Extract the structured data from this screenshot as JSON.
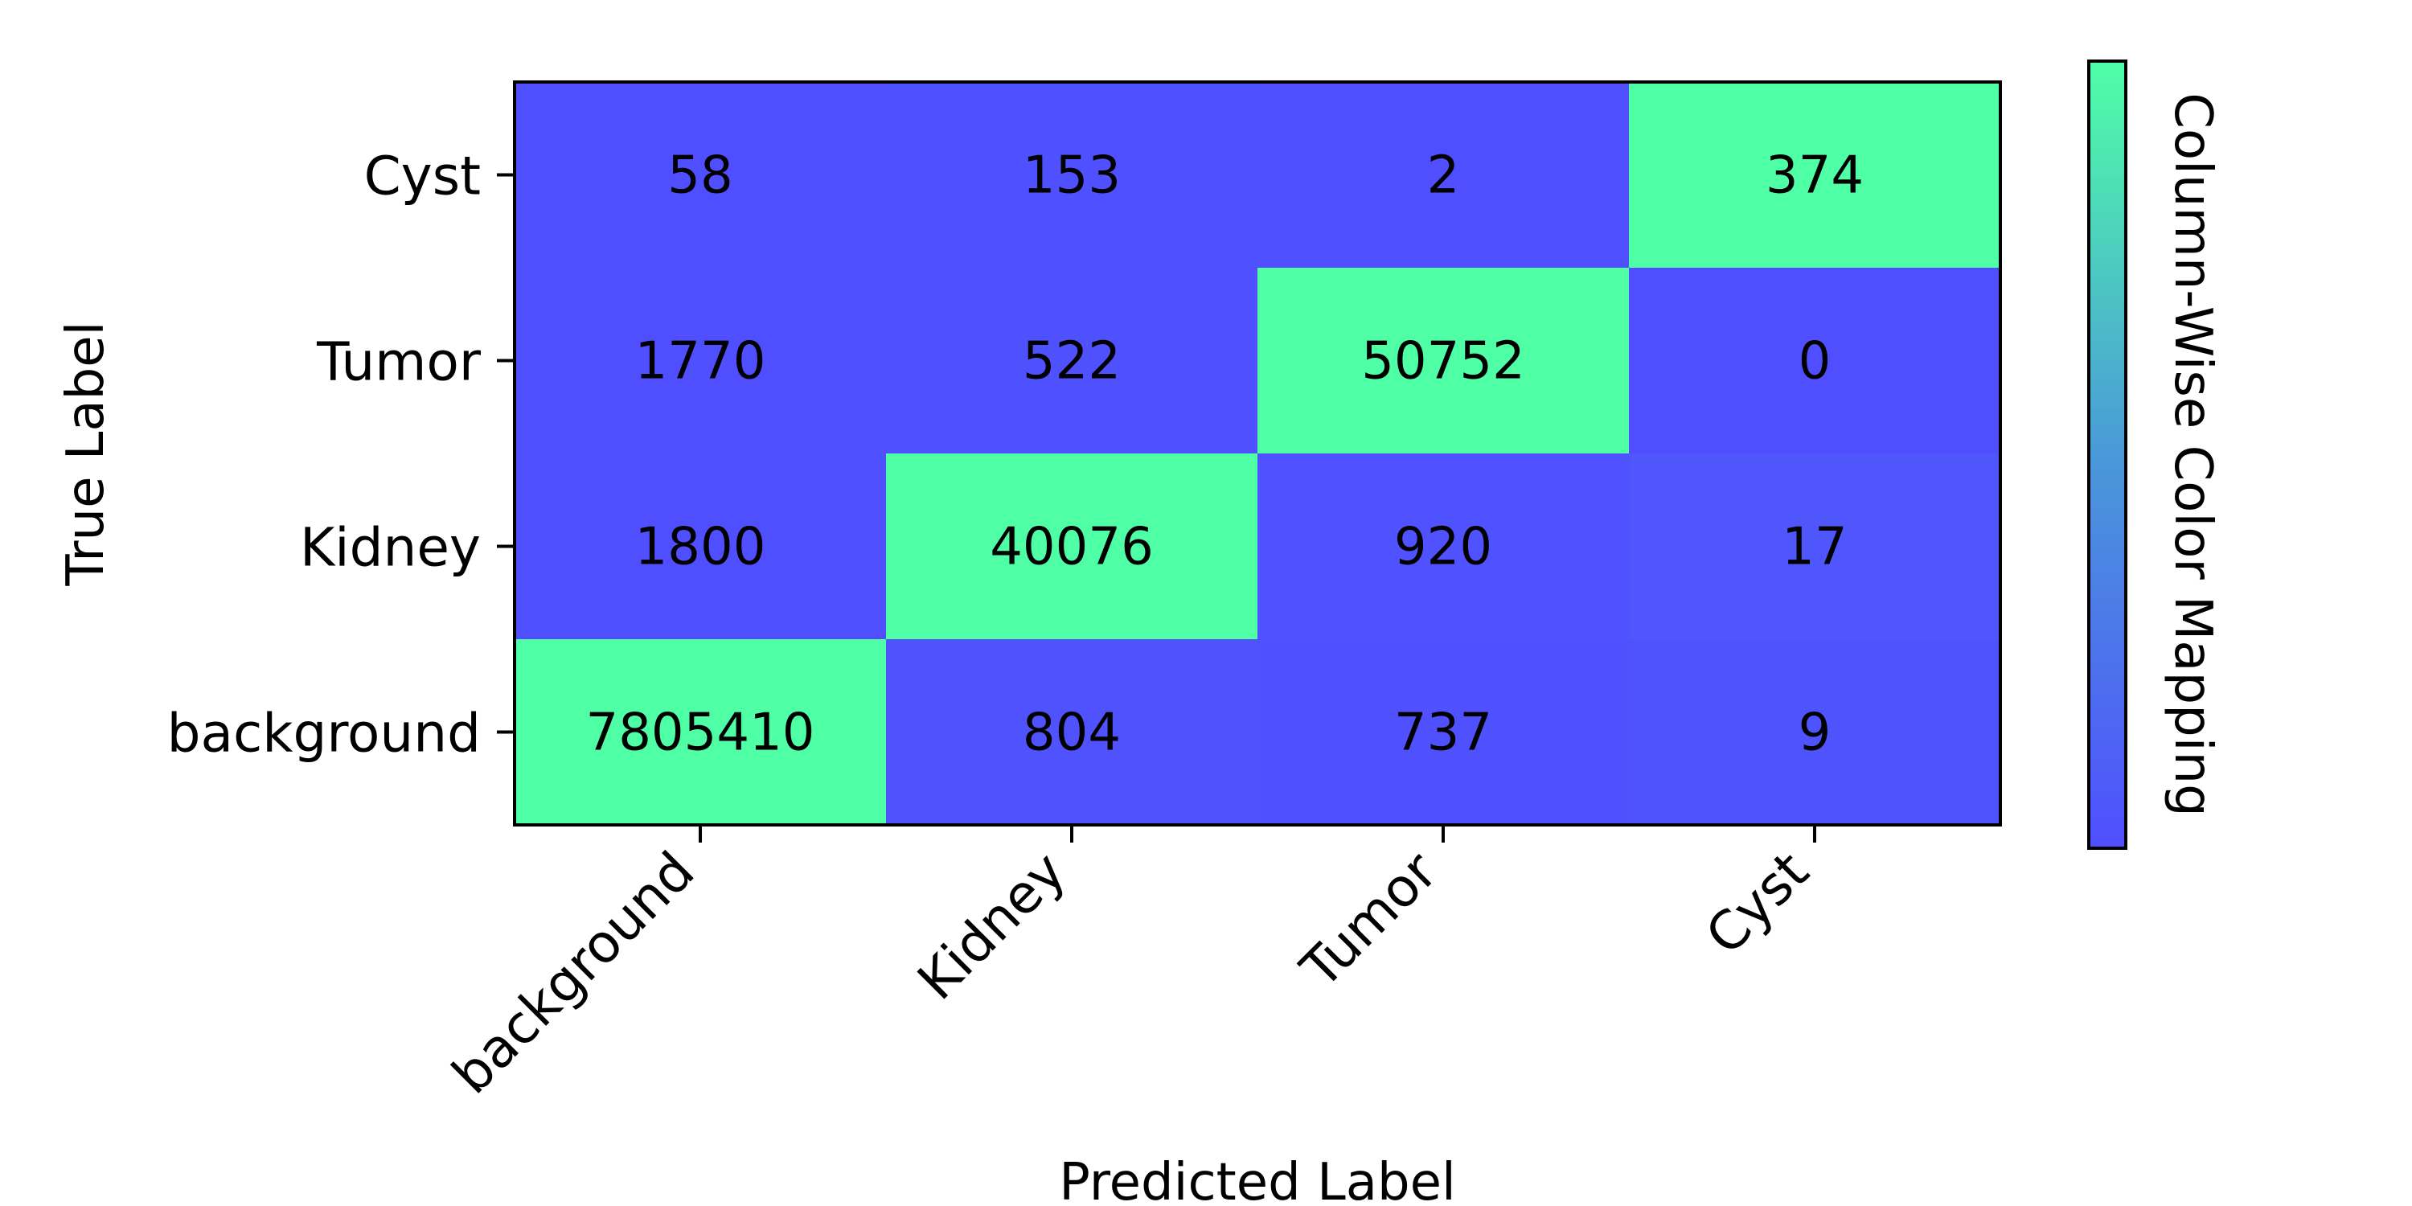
{
  "chart_data": {
    "type": "heatmap",
    "title": "",
    "xlabel": "Predicted Label",
    "ylabel": "True Label",
    "x_categories": [
      "background",
      "Kidney",
      "Tumor",
      "Cyst"
    ],
    "y_categories": [
      "Cyst",
      "Tumor",
      "Kidney",
      "background"
    ],
    "values": [
      [
        58,
        153,
        2,
        374
      ],
      [
        1770,
        522,
        50752,
        0
      ],
      [
        1800,
        40076,
        920,
        17
      ],
      [
        7805410,
        804,
        737,
        9
      ]
    ],
    "color_normalization": "column-wise",
    "colorbar": {
      "label": "Column-Wise Color Mapping",
      "color_low": "#4f4fff",
      "color_mid": "#4a99d8",
      "color_high": "#4fffa6",
      "ticks": "none"
    },
    "grid": false,
    "legend": "none"
  }
}
